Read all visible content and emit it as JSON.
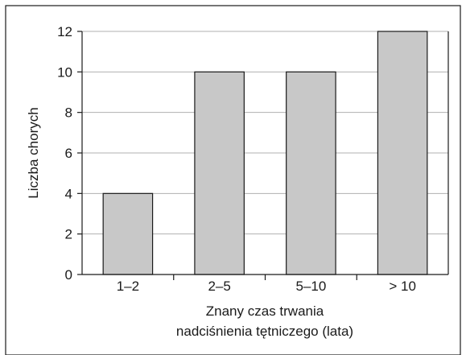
{
  "chart_data": {
    "type": "bar",
    "categories": [
      "1–2",
      "2–5",
      "5–10",
      "> 10"
    ],
    "values": [
      4,
      10,
      10,
      12
    ],
    "title": "",
    "xlabel_lines": [
      "Znany czas trwania",
      "nadciśnienia tętniczego (lata)"
    ],
    "ylabel": "Liczba chorych",
    "ylim": [
      0,
      12
    ],
    "yticks": [
      0,
      2,
      4,
      6,
      8,
      10,
      12
    ],
    "grid": true,
    "legend": "none",
    "colors": {
      "bar_fill": "#c8c8c8",
      "bar_stroke": "#1a1a1a",
      "grid": "#b0b0b0",
      "frame": "#1a1a1a"
    }
  }
}
